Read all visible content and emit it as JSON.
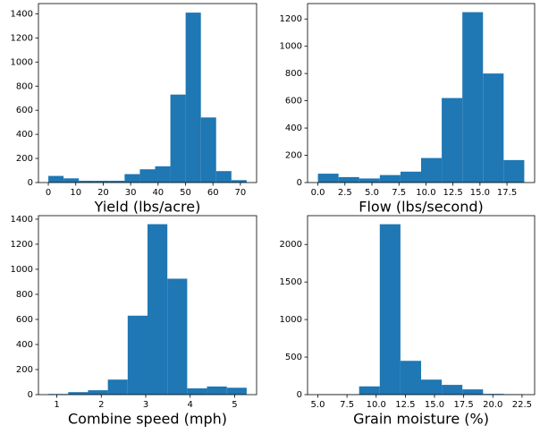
{
  "chart_data": [
    {
      "type": "histogram",
      "xlabel": "Yield (lbs/acre)",
      "color": "#1f77b4",
      "bins": [
        0,
        5.56,
        11.12,
        16.68,
        22.24,
        27.8,
        33.36,
        38.92,
        44.48,
        50.04,
        55.6,
        61.16,
        66.72,
        72.28
      ],
      "counts": [
        55,
        35,
        15,
        15,
        15,
        70,
        110,
        135,
        730,
        1410,
        540,
        95,
        20
      ],
      "xlim": [
        -3.6,
        75.9
      ],
      "ylim": [
        0,
        1485
      ],
      "xticks": [
        0,
        10,
        20,
        30,
        40,
        50,
        60,
        70
      ],
      "yticks": [
        0,
        200,
        400,
        600,
        800,
        1000,
        1200,
        1400
      ]
    },
    {
      "type": "histogram",
      "xlabel": "Flow (lbs/second)",
      "color": "#1f77b4",
      "bins": [
        0,
        1.91,
        3.82,
        5.73,
        7.64,
        9.55,
        11.46,
        13.37,
        15.28,
        17.19,
        19.1
      ],
      "counts": [
        65,
        40,
        30,
        55,
        80,
        180,
        620,
        1250,
        800,
        165
      ],
      "xlim": [
        -0.96,
        20.06
      ],
      "ylim": [
        0,
        1313
      ],
      "xticks": [
        {
          "value": 0,
          "label": "0.0"
        },
        2.5,
        {
          "value": 5,
          "label": "5.0"
        },
        7.5,
        {
          "value": 10,
          "label": "10.0"
        },
        12.5,
        {
          "value": 15,
          "label": "15.0"
        },
        17.5
      ],
      "yticks": [
        0,
        200,
        400,
        600,
        800,
        1000,
        1200
      ]
    },
    {
      "type": "histogram",
      "xlabel": "Combine speed (mph)",
      "color": "#1f77b4",
      "bins": [
        0.81,
        1.256,
        1.702,
        2.148,
        2.594,
        3.04,
        3.486,
        3.932,
        4.378,
        4.824,
        5.27
      ],
      "counts": [
        5,
        20,
        35,
        120,
        630,
        1360,
        925,
        50,
        65,
        55
      ],
      "xlim": [
        0.587,
        5.493
      ],
      "ylim": [
        0,
        1428
      ],
      "xticks": [
        1,
        2,
        3,
        4,
        5
      ],
      "yticks": [
        0,
        200,
        400,
        600,
        800,
        1000,
        1200,
        1400
      ]
    },
    {
      "type": "histogram",
      "xlabel": "Grain moisture (%)",
      "color": "#1f77b4",
      "bins": [
        5,
        6.77,
        8.54,
        10.31,
        12.08,
        13.85,
        15.62,
        17.39,
        19.16,
        20.93,
        22.7
      ],
      "counts": [
        5,
        5,
        110,
        2270,
        450,
        200,
        130,
        70,
        10,
        5
      ],
      "xlim": [
        4.12,
        23.58
      ],
      "ylim": [
        0,
        2384
      ],
      "xticks": [
        {
          "value": 5,
          "label": "5.0"
        },
        7.5,
        {
          "value": 10,
          "label": "10.0"
        },
        12.5,
        {
          "value": 15,
          "label": "15.0"
        },
        17.5,
        {
          "value": 20,
          "label": "20.0"
        },
        22.5
      ],
      "yticks": [
        0,
        500,
        1000,
        1500,
        2000
      ]
    }
  ]
}
